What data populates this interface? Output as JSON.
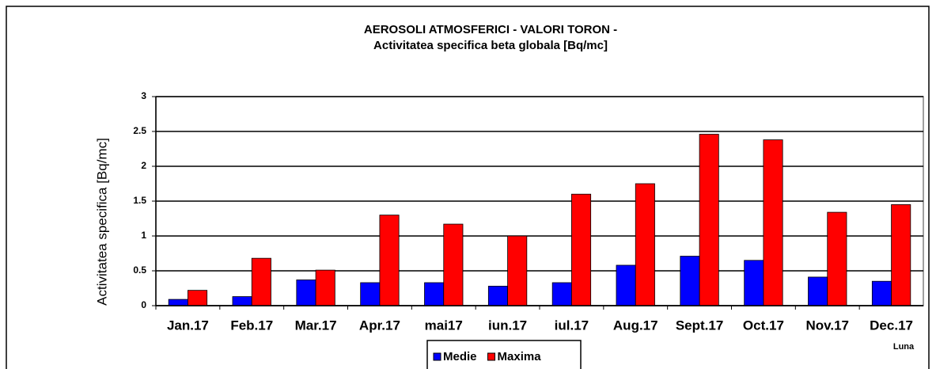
{
  "chart_data": {
    "type": "bar",
    "title": [
      "AEROSOLI ATMOSFERICI  - VALORI TORON  -",
      "Activitatea specifica beta globala [Bq/mc]"
    ],
    "y_label": "Activitatea specifica [Bq/mc]",
    "x_label": "Luna",
    "categories": [
      "Jan.17",
      "Feb.17",
      "Mar.17",
      "Apr.17",
      "mai17",
      "iun.17",
      "iul.17",
      "Aug.17",
      "Sept.17",
      "Oct.17",
      "Nov.17",
      "Dec.17"
    ],
    "series": [
      {
        "name": "Medie",
        "color": "#0000ff",
        "values": [
          0.09,
          0.13,
          0.37,
          0.33,
          0.33,
          0.28,
          0.33,
          0.58,
          0.71,
          0.65,
          0.41,
          0.35
        ]
      },
      {
        "name": "Maxima",
        "color": "#ff0000",
        "values": [
          0.22,
          0.68,
          0.51,
          1.3,
          1.17,
          1.0,
          1.6,
          1.75,
          2.46,
          2.38,
          1.34,
          1.45
        ]
      }
    ],
    "ylim": [
      0,
      3
    ],
    "yticks": [
      0,
      0.5,
      1,
      1.5,
      2,
      2.5,
      3
    ],
    "grid": true,
    "legend": "bottom"
  }
}
